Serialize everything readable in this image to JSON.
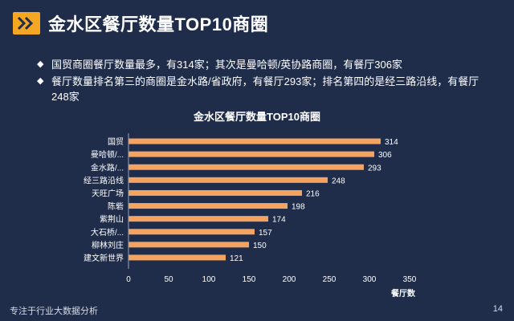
{
  "header": {
    "title": "金水区餐厅数量TOP10商圈",
    "logo_icon": "double-chevron-right-icon"
  },
  "bullets": [
    "国贸商圈餐厅数量最多，有314家；其次是曼哈顿/英协路商圈，有餐厅306家",
    "餐厅数量排名第三的商圈是金水路/省政府，有餐厅293家；排名第四的是经三路沿线，有餐厅248家"
  ],
  "bullet_mark": "◆",
  "chart_data": {
    "type": "bar",
    "orientation": "horizontal",
    "title": "金水区餐厅数量TOP10商圈",
    "categories": [
      "国贸",
      "曼哈顿/...",
      "金水路/...",
      "经三路沿线",
      "天旺广场",
      "陈砦",
      "紫荆山",
      "大石桥/...",
      "柳林刘庄",
      "建文新世界"
    ],
    "values": [
      314,
      306,
      293,
      248,
      216,
      198,
      174,
      157,
      150,
      121
    ],
    "xlabel": "餐厅数",
    "ylabel": "",
    "xlim": [
      0,
      350
    ],
    "xticks": [
      0,
      50,
      100,
      150,
      200,
      250,
      300,
      350
    ],
    "grid": false,
    "bar_color": "#f4a460"
  },
  "footer": {
    "text": "专注于行业大数据分析",
    "page": "14"
  },
  "colors": {
    "background": "#1f2d4b",
    "accent": "#f5a623",
    "bar": "#f4a460",
    "text": "#ffffff"
  }
}
